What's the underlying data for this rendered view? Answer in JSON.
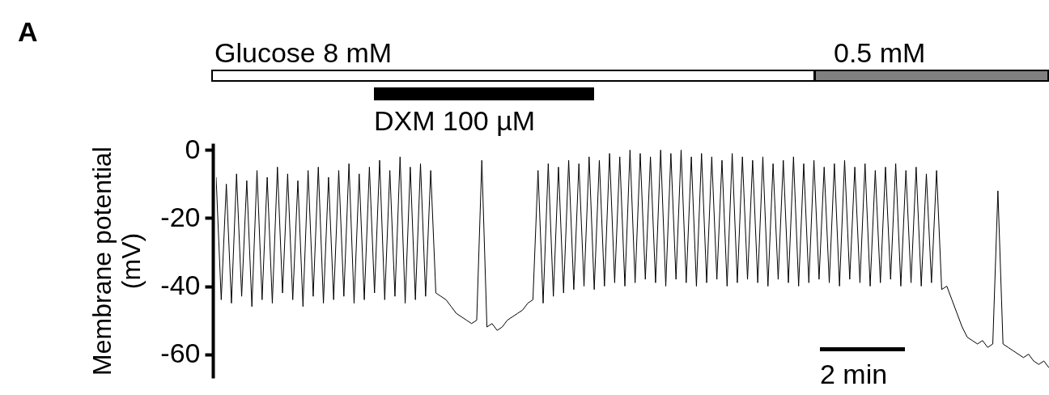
{
  "chart_data": {
    "type": "line",
    "ylabel": "Membrane potential (mV)",
    "ylim": [
      -67,
      2
    ],
    "yticks": [
      0,
      -20,
      -40,
      -60
    ],
    "tick_labels": "y",
    "grid": false,
    "annotations": [
      "A",
      "Glucose 8 mM",
      "0.5 mM",
      "DXM 100 µM",
      "2 min"
    ],
    "categories": [
      null,
      null,
      null,
      null,
      null,
      null,
      null,
      null,
      null,
      null,
      null,
      null,
      null,
      null,
      null,
      null,
      null,
      null,
      null,
      null,
      null,
      null,
      null,
      null,
      null,
      null,
      null,
      null,
      null,
      null,
      null,
      null,
      null,
      null,
      null,
      null,
      null,
      null,
      null,
      null,
      null,
      null,
      null,
      null,
      null,
      null,
      null,
      null,
      null,
      null,
      null,
      null,
      null,
      null,
      null,
      null,
      null,
      null,
      null,
      null,
      null,
      null,
      null,
      null,
      null,
      null,
      null,
      null,
      null,
      null,
      null,
      null,
      null,
      null,
      null,
      null,
      null,
      null,
      null,
      null,
      null,
      null,
      null,
      null,
      null,
      null,
      null,
      null,
      null,
      null,
      null,
      null,
      null,
      null,
      null,
      null,
      null,
      null,
      null,
      null,
      null,
      null,
      null,
      null,
      null,
      null,
      null,
      null,
      null,
      null,
      null,
      null,
      null,
      null,
      null,
      null,
      null,
      null,
      null,
      null,
      null,
      null,
      null,
      null,
      null,
      null,
      null,
      null,
      null,
      null,
      null,
      null,
      null,
      null,
      null,
      null,
      null,
      null,
      null,
      null,
      null,
      null,
      null,
      null,
      null,
      null,
      null,
      null,
      null,
      null,
      null,
      null,
      null,
      null,
      null,
      null,
      null,
      null,
      null,
      null,
      null,
      null,
      null,
      null
    ],
    "series": [
      {
        "color": "#000000",
        "values": [
          -8,
          -44,
          -10,
          -45,
          -7,
          -43,
          -9,
          -46,
          -6,
          -44,
          -8,
          -45,
          -5,
          -42,
          -7,
          -44,
          -9,
          -46,
          -6,
          -43,
          -5,
          -45,
          -8,
          -44,
          -6,
          -43,
          -4,
          -45,
          -7,
          -44,
          -5,
          -42,
          -3,
          -44,
          -6,
          -43,
          -2,
          -45,
          -5,
          -44,
          -4,
          -43,
          -6,
          -42,
          -43,
          -44,
          -46,
          -48,
          -49,
          -50,
          -51,
          -50,
          -3,
          -52,
          -51,
          -53,
          -52,
          -50,
          -49,
          -48,
          -47,
          -45,
          -44,
          -6,
          -45,
          -4,
          -43,
          -5,
          -42,
          -3,
          -41,
          -4,
          -40,
          -2,
          -41,
          -3,
          -40,
          -1,
          -39,
          -2,
          -40,
          0,
          -39,
          -1,
          -38,
          -2,
          -39,
          0,
          -40,
          -1,
          -38,
          0,
          -39,
          -2,
          -40,
          -1,
          -39,
          -2,
          -38,
          -3,
          -40,
          -1,
          -39,
          -2,
          -38,
          -3,
          -39,
          -2,
          -40,
          -4,
          -38,
          -3,
          -39,
          -2,
          -40,
          -4,
          -39,
          -3,
          -38,
          -5,
          -39,
          -4,
          -40,
          -3,
          -38,
          -5,
          -39,
          -4,
          -40,
          -6,
          -39,
          -5,
          -38,
          -4,
          -40,
          -6,
          -39,
          -5,
          -40,
          -7,
          -39,
          -6,
          -41,
          -40,
          -44,
          -48,
          -52,
          -55,
          -56,
          -57,
          -56,
          -58,
          -57,
          -12,
          -57,
          -58,
          -59,
          -60,
          -61,
          -60,
          -62,
          -63,
          -62,
          -64
        ]
      }
    ]
  }
}
